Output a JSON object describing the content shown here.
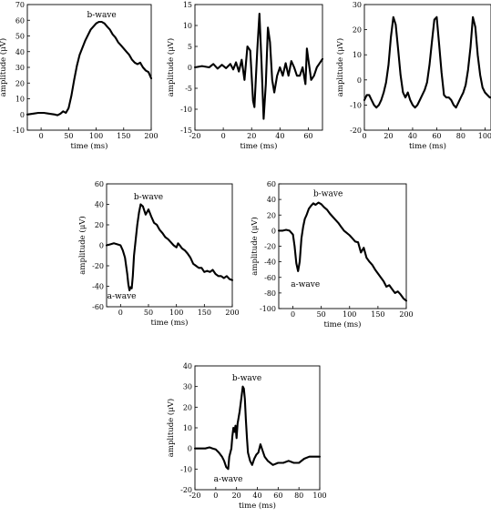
{
  "chart_data": [
    {
      "type": "line",
      "xlabel": "time (ms)",
      "ylabel": "amplitude (μV)",
      "xlim": [
        -25,
        200
      ],
      "ylim": [
        -10,
        70
      ],
      "xticks": [
        0,
        50,
        100,
        150,
        200
      ],
      "yticks": [
        -10,
        0,
        10,
        20,
        30,
        40,
        50,
        60,
        70
      ],
      "annotations": [
        {
          "text": "b-wave",
          "x": 110,
          "y": 62
        }
      ],
      "x": [
        -25,
        -15,
        -5,
        5,
        15,
        25,
        30,
        35,
        40,
        45,
        50,
        55,
        60,
        65,
        70,
        80,
        90,
        100,
        105,
        110,
        115,
        120,
        125,
        130,
        135,
        140,
        145,
        150,
        155,
        160,
        165,
        170,
        175,
        180,
        185,
        190,
        195,
        200
      ],
      "y": [
        0,
        0.5,
        1,
        1,
        0.5,
        0,
        -0.5,
        0.5,
        2,
        1,
        4,
        12,
        22,
        31,
        38,
        47,
        54,
        58,
        59,
        59,
        58,
        56,
        54,
        51,
        49,
        46,
        44,
        42,
        40,
        38,
        35,
        33,
        32,
        33,
        30,
        28,
        27,
        23
      ]
    },
    {
      "type": "line",
      "xlabel": "time (ms)",
      "ylabel": "amplitude (μV)",
      "xlim": [
        -20,
        70
      ],
      "ylim": [
        -15,
        15
      ],
      "xticks": [
        -20,
        0,
        20,
        40,
        60
      ],
      "yticks": [
        -15,
        -10,
        -5,
        0,
        5,
        10,
        15
      ],
      "x": [
        -20,
        -15,
        -10,
        -7,
        -4,
        -1,
        2,
        5,
        7,
        9,
        11,
        13,
        15,
        17,
        19,
        21,
        22,
        24,
        25.5,
        27,
        28.5,
        30,
        31.5,
        33,
        34.5,
        36,
        38,
        40,
        42,
        44,
        46,
        48,
        50,
        52,
        54,
        56,
        58,
        59,
        60,
        62,
        64,
        66,
        68,
        70
      ],
      "y": [
        0,
        0.3,
        0,
        0.8,
        -0.3,
        0.6,
        -0.2,
        0.8,
        -0.5,
        1.2,
        -1,
        1.8,
        -3,
        5,
        4,
        -8,
        -9.5,
        4,
        12.8,
        1,
        -12.3,
        -4,
        9.5,
        6,
        -3,
        -6,
        -2,
        0,
        -2,
        1,
        -2,
        1.5,
        0,
        -2,
        -2,
        0,
        -4,
        4.5,
        2,
        -3,
        -2,
        0,
        1,
        2
      ]
    },
    {
      "type": "line",
      "xlabel": "time (ms)",
      "ylabel": "amplitude (μV)",
      "xlim": [
        0,
        105
      ],
      "ylim": [
        -20,
        30
      ],
      "xticks": [
        0,
        20,
        40,
        60,
        80,
        100
      ],
      "yticks": [
        -20,
        -10,
        0,
        10,
        20,
        30
      ],
      "x": [
        0,
        2,
        4,
        6,
        8,
        10,
        12,
        14,
        16,
        18,
        20,
        22,
        24,
        26,
        28,
        30,
        32,
        34,
        36,
        38,
        40,
        42,
        44,
        46,
        48,
        50,
        52,
        54,
        56,
        58,
        60,
        62,
        64,
        66,
        68,
        70,
        72,
        74,
        76,
        78,
        80,
        82,
        84,
        86,
        88,
        90,
        92,
        94,
        96,
        98,
        100,
        102,
        104,
        106
      ],
      "y": [
        -8,
        -6,
        -6,
        -8,
        -10,
        -11,
        -10,
        -8,
        -5,
        -1,
        6,
        17,
        25,
        22,
        12,
        2,
        -5,
        -7,
        -5,
        -8,
        -10,
        -11,
        -10,
        -8,
        -6,
        -4,
        -1,
        6,
        15,
        24,
        25,
        14,
        3,
        -6,
        -7,
        -7,
        -8,
        -10,
        -11,
        -9,
        -7,
        -5,
        -2,
        4,
        13,
        25,
        21,
        10,
        2,
        -3,
        -5,
        -6,
        -7,
        -7
      ]
    },
    {
      "type": "line",
      "xlabel": "time (ms)",
      "ylabel": "amplitude (μV)",
      "xlim": [
        -25,
        200
      ],
      "ylim": [
        -60,
        60
      ],
      "xticks": [
        0,
        50,
        100,
        150,
        200
      ],
      "yticks": [
        -60,
        -40,
        -20,
        0,
        20,
        40,
        60
      ],
      "annotations": [
        {
          "text": "b-wave",
          "x": 50,
          "y": 45
        },
        {
          "text": "a-wave",
          "x": 2,
          "y": -52
        }
      ],
      "x": [
        -25,
        -18,
        -12,
        -6,
        0,
        4,
        8,
        12,
        14,
        16,
        18,
        20,
        22,
        24,
        27,
        30,
        33,
        36,
        40,
        45,
        50,
        55,
        60,
        65,
        70,
        75,
        80,
        85,
        90,
        95,
        100,
        103,
        106,
        110,
        115,
        120,
        125,
        130,
        135,
        140,
        145,
        150,
        155,
        160,
        165,
        170,
        175,
        180,
        185,
        190,
        195,
        200
      ],
      "y": [
        0,
        1,
        2,
        1,
        0,
        -5,
        -12,
        -28,
        -38,
        -44,
        -41,
        -42,
        -30,
        -10,
        5,
        20,
        32,
        40,
        38,
        30,
        35,
        28,
        22,
        20,
        15,
        12,
        8,
        6,
        3,
        0,
        -2,
        2,
        0,
        -3,
        -5,
        -8,
        -12,
        -18,
        -20,
        -22,
        -22,
        -26,
        -25,
        -26,
        -24,
        -28,
        -30,
        -30,
        -32,
        -30,
        -33,
        -34
      ]
    },
    {
      "type": "line",
      "xlabel": "time (ms)",
      "ylabel": "amplitude (μV)",
      "xlim": [
        -25,
        200
      ],
      "ylim": [
        -100,
        60
      ],
      "xticks": [
        0,
        50,
        100,
        150,
        200
      ],
      "yticks": [
        -100,
        -80,
        -60,
        -40,
        -20,
        0,
        20,
        40,
        60
      ],
      "annotations": [
        {
          "text": "b-wave",
          "x": 62,
          "y": 44
        },
        {
          "text": "a-wave",
          "x": 22,
          "y": -72
        }
      ],
      "x": [
        -25,
        -18,
        -12,
        -6,
        0,
        3,
        6,
        9,
        12,
        15,
        18,
        21,
        24,
        28,
        32,
        36,
        40,
        45,
        50,
        55,
        60,
        65,
        70,
        75,
        80,
        85,
        90,
        95,
        100,
        105,
        110,
        115,
        120,
        125,
        130,
        135,
        140,
        145,
        150,
        155,
        160,
        165,
        170,
        175,
        180,
        185,
        190,
        195,
        200
      ],
      "y": [
        0,
        0,
        1,
        0,
        -5,
        -20,
        -42,
        -52,
        -40,
        -10,
        5,
        15,
        20,
        28,
        32,
        35,
        33,
        36,
        34,
        30,
        27,
        22,
        18,
        14,
        10,
        5,
        0,
        -3,
        -6,
        -10,
        -14,
        -15,
        -28,
        -22,
        -35,
        -40,
        -44,
        -50,
        -55,
        -60,
        -65,
        -72,
        -70,
        -75,
        -80,
        -78,
        -82,
        -87,
        -90
      ]
    },
    {
      "type": "line",
      "xlabel": "time (ms)",
      "ylabel": "amplitude (μV)",
      "xlim": [
        -20,
        100
      ],
      "ylim": [
        -20,
        40
      ],
      "xticks": [
        -20,
        0,
        20,
        40,
        60,
        80,
        100
      ],
      "yticks": [
        -20,
        -10,
        0,
        10,
        20,
        30,
        40
      ],
      "annotations": [
        {
          "text": "b-wave",
          "x": 30,
          "y": 33
        },
        {
          "text": "a-wave",
          "x": 12,
          "y": -16
        }
      ],
      "x": [
        -20,
        -15,
        -10,
        -6,
        -3,
        0,
        3,
        6,
        8,
        10,
        12,
        13,
        15,
        16,
        17,
        18,
        19,
        20,
        21,
        23,
        25,
        26,
        27,
        28,
        29,
        30,
        31,
        33,
        35,
        37,
        39,
        41,
        43,
        45,
        47,
        50,
        55,
        60,
        65,
        70,
        75,
        80,
        85,
        90,
        95,
        100
      ],
      "y": [
        0,
        0,
        0,
        0.5,
        0,
        -0.5,
        -2,
        -4,
        -6,
        -9,
        -10,
        -4,
        0,
        6,
        10,
        8,
        11,
        5,
        12,
        18,
        26,
        30,
        29,
        24,
        14,
        5,
        -2,
        -6,
        -8,
        -5,
        -3,
        -2,
        2,
        -1,
        -4,
        -6,
        -8,
        -7,
        -7,
        -6,
        -7,
        -7,
        -5,
        -4,
        -4,
        -4
      ]
    }
  ]
}
